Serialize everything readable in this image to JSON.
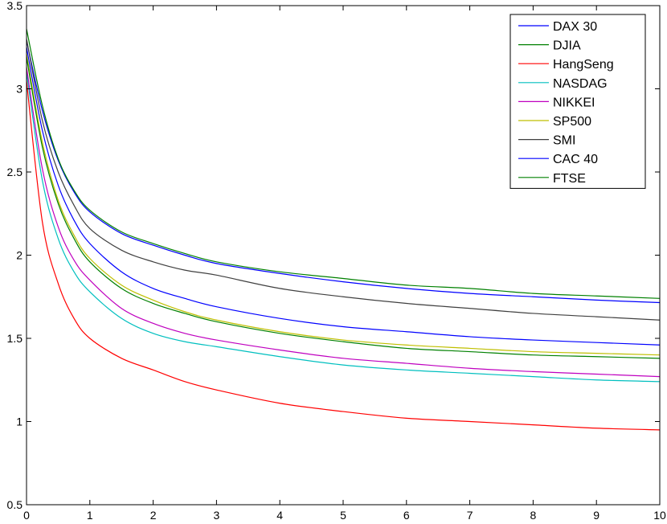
{
  "chart_data": {
    "type": "line",
    "title": "",
    "xlabel": "",
    "ylabel": "",
    "xlim": [
      0,
      10
    ],
    "ylim": [
      0.5,
      3.5
    ],
    "xticks": [
      "0",
      "1",
      "2",
      "3",
      "4",
      "5",
      "6",
      "7",
      "8",
      "9",
      "10"
    ],
    "yticks": [
      "0.5",
      "1",
      "1.5",
      "2",
      "2.5",
      "3",
      "3.5"
    ],
    "grid": false,
    "legend_position": "top-right",
    "x": [
      0,
      0.25,
      0.5,
      0.75,
      1,
      1.5,
      2,
      2.5,
      3,
      4,
      5,
      6,
      7,
      8,
      9,
      10
    ],
    "series": [
      {
        "name": "DAX 30",
        "color": "#0000ff",
        "values": [
          3.29,
          2.87,
          2.57,
          2.38,
          2.26,
          2.13,
          2.06,
          2.0,
          1.95,
          1.89,
          1.84,
          1.8,
          1.77,
          1.75,
          1.73,
          1.715
        ]
      },
      {
        "name": "DJIA",
        "color": "#008000",
        "values": [
          3.36,
          2.9,
          2.58,
          2.39,
          2.27,
          2.14,
          2.07,
          2.01,
          1.96,
          1.9,
          1.86,
          1.82,
          1.8,
          1.77,
          1.755,
          1.74
        ]
      },
      {
        "name": "HangSeng",
        "color": "#ff0000",
        "values": [
          3.05,
          2.2,
          1.83,
          1.62,
          1.5,
          1.38,
          1.31,
          1.24,
          1.19,
          1.11,
          1.06,
          1.02,
          1.0,
          0.98,
          0.96,
          0.95
        ]
      },
      {
        "name": "NASDAG",
        "color": "#00bfbf",
        "values": [
          3.1,
          2.45,
          2.1,
          1.9,
          1.78,
          1.62,
          1.53,
          1.48,
          1.45,
          1.39,
          1.34,
          1.31,
          1.29,
          1.27,
          1.25,
          1.24
        ]
      },
      {
        "name": "NIKKEI",
        "color": "#bf00bf",
        "values": [
          3.13,
          2.52,
          2.17,
          1.97,
          1.85,
          1.68,
          1.59,
          1.53,
          1.49,
          1.43,
          1.38,
          1.35,
          1.32,
          1.3,
          1.285,
          1.27
        ]
      },
      {
        "name": "SP500",
        "color": "#bfbf00",
        "values": [
          3.21,
          2.68,
          2.33,
          2.12,
          1.98,
          1.82,
          1.73,
          1.66,
          1.61,
          1.54,
          1.49,
          1.46,
          1.44,
          1.42,
          1.41,
          1.4
        ]
      },
      {
        "name": "SMI",
        "color": "#404040",
        "values": [
          3.3,
          2.81,
          2.5,
          2.3,
          2.16,
          2.03,
          1.96,
          1.91,
          1.88,
          1.8,
          1.75,
          1.71,
          1.68,
          1.65,
          1.63,
          1.61
        ]
      },
      {
        "name": "CAC 40",
        "color": "#0000ff",
        "values": [
          3.25,
          2.75,
          2.42,
          2.21,
          2.07,
          1.9,
          1.8,
          1.74,
          1.69,
          1.62,
          1.57,
          1.54,
          1.51,
          1.49,
          1.475,
          1.46
        ]
      },
      {
        "name": "FTSE",
        "color": "#008000",
        "values": [
          3.19,
          2.65,
          2.31,
          2.1,
          1.96,
          1.8,
          1.71,
          1.65,
          1.6,
          1.53,
          1.48,
          1.44,
          1.42,
          1.4,
          1.39,
          1.38
        ]
      }
    ]
  }
}
